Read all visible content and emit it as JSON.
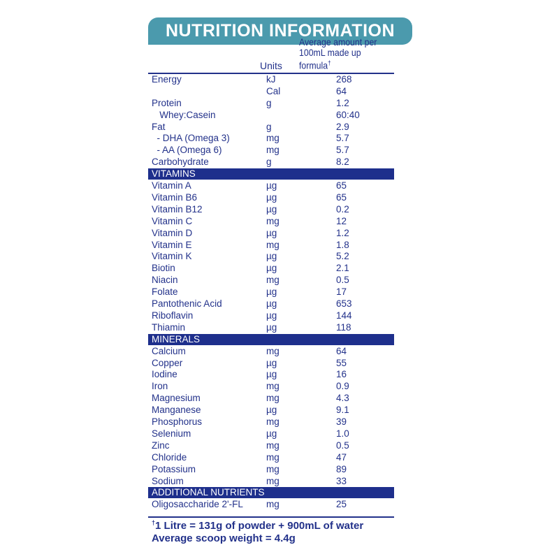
{
  "title": "NUTRITION INFORMATION",
  "header": {
    "units": "Units",
    "amount_line1": "Average amount per",
    "amount_line2": "100mL made up formula",
    "dagger": "†"
  },
  "sections": [
    {
      "name": "",
      "rows": [
        [
          "Energy",
          "kJ",
          "268"
        ],
        [
          "",
          "Cal",
          "64"
        ],
        [
          "Protein",
          "g",
          "1.2"
        ],
        [
          "   Whey:Casein",
          "",
          "60:40"
        ],
        [
          "Fat",
          "g",
          "2.9"
        ],
        [
          "  - DHA (Omega 3)",
          "mg",
          "5.7"
        ],
        [
          "  - AA (Omega 6)",
          "mg",
          "5.7"
        ],
        [
          "Carbohydrate",
          "g",
          "8.2"
        ]
      ]
    },
    {
      "name": "VITAMINS",
      "rows": [
        [
          "Vitamin A",
          "µg",
          "65"
        ],
        [
          "Vitamin B6",
          "µg",
          "65"
        ],
        [
          "Vitamin B12",
          "µg",
          "0.2"
        ],
        [
          "Vitamin C",
          "mg",
          "12"
        ],
        [
          "Vitamin D",
          "µg",
          "1.2"
        ],
        [
          "Vitamin E",
          "mg",
          "1.8"
        ],
        [
          "Vitamin K",
          "µg",
          "5.2"
        ],
        [
          "Biotin",
          "µg",
          "2.1"
        ],
        [
          "Niacin",
          "mg",
          "0.5"
        ],
        [
          "Folate",
          "µg",
          "17"
        ],
        [
          "Pantothenic Acid",
          "µg",
          "653"
        ],
        [
          "Riboflavin",
          "µg",
          "144"
        ],
        [
          "Thiamin",
          "µg",
          "118"
        ]
      ]
    },
    {
      "name": "MINERALS",
      "rows": [
        [
          "Calcium",
          "mg",
          "64"
        ],
        [
          "Copper",
          "µg",
          "55"
        ],
        [
          "Iodine",
          "µg",
          "16"
        ],
        [
          "Iron",
          "mg",
          "0.9"
        ],
        [
          "Magnesium",
          "mg",
          "4.3"
        ],
        [
          "Manganese",
          "µg",
          "9.1"
        ],
        [
          "Phosphorus",
          "mg",
          "39"
        ],
        [
          "Selenium",
          "µg",
          "1.0"
        ],
        [
          "Zinc",
          "mg",
          "0.5"
        ],
        [
          "Chloride",
          "mg",
          "47"
        ],
        [
          "Potassium",
          "mg",
          "89"
        ],
        [
          "Sodium",
          "mg",
          "33"
        ]
      ]
    },
    {
      "name": "ADDITIONAL NUTRIENTS",
      "rows": [
        [
          "Oligosaccharide 2'-FL",
          "mg",
          "25"
        ]
      ]
    }
  ],
  "footnote": {
    "dagger": "†",
    "line1": "1 Litre = 131g of powder + 900mL of water",
    "line2": "Average scoop weight = 4.4g"
  },
  "colors": {
    "banner": "#4b9aad",
    "text": "#22318a",
    "section_bar": "#1e2f8c"
  }
}
